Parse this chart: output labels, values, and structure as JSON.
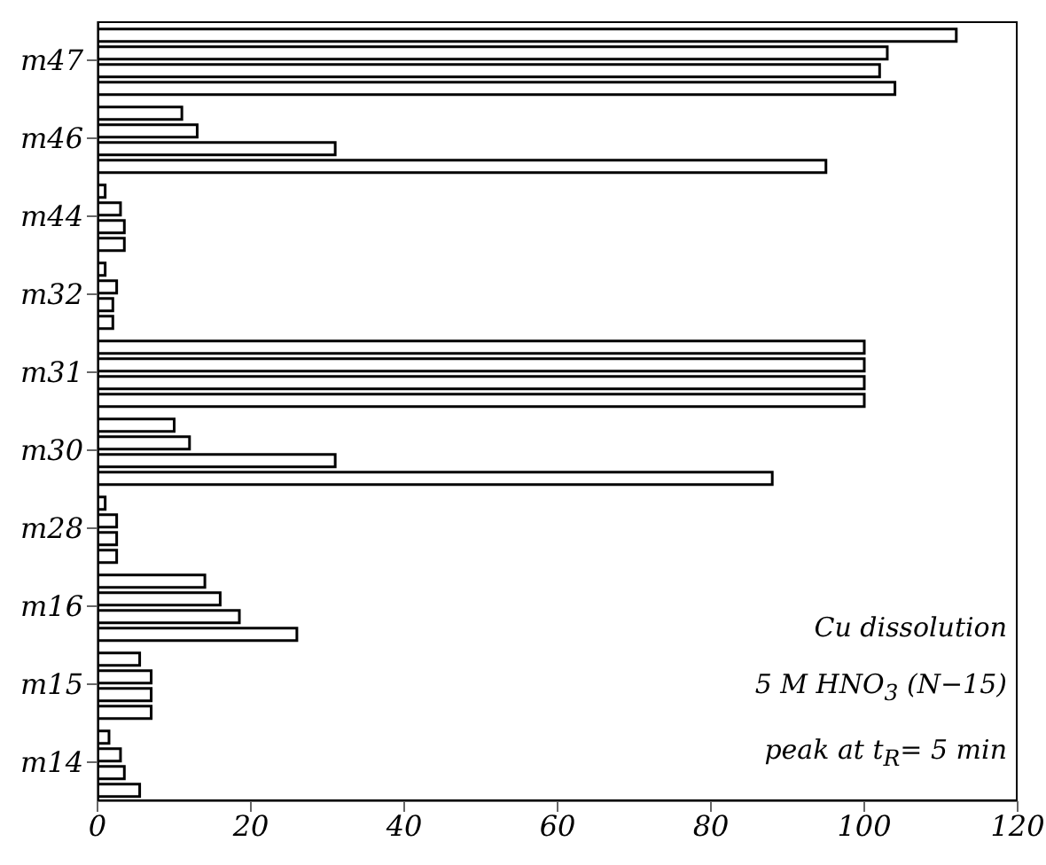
{
  "chart_data": {
    "type": "bar",
    "orientation": "horizontal",
    "categories": [
      "m47",
      "m46",
      "m44",
      "m32",
      "m31",
      "m30",
      "m28",
      "m16",
      "m15",
      "m14"
    ],
    "series": [
      {
        "color": "#ffffff",
        "values": [
          112,
          11,
          1,
          1,
          100,
          10,
          1,
          14,
          5.5,
          1.5
        ]
      },
      {
        "color": "#ffffff",
        "values": [
          103,
          13,
          3,
          2.5,
          100,
          12,
          2.5,
          16,
          7,
          3
        ]
      },
      {
        "color": "#ffffff",
        "values": [
          102,
          31,
          3.5,
          2,
          100,
          31,
          2.5,
          18.5,
          7,
          3.5
        ]
      },
      {
        "color": "#ffffff",
        "values": [
          104,
          95,
          3.5,
          2,
          100,
          88,
          2.5,
          26,
          7,
          5.5
        ]
      }
    ],
    "xlim": [
      0,
      120
    ],
    "xticks": [
      0,
      20,
      40,
      60,
      80,
      100,
      120
    ],
    "grid": false,
    "annotations": [
      "Cu dissolution",
      "5 M HNO$_{3}$ (N−15)",
      "peak at t$_{R}$= 5 min"
    ]
  }
}
